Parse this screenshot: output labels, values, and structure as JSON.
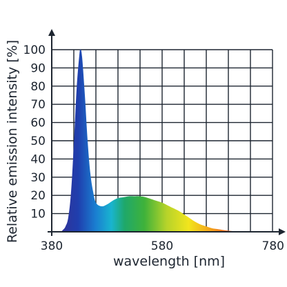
{
  "chart_data": {
    "type": "area",
    "title": "",
    "xlabel": "wavelength [nm]",
    "ylabel": "Relative emission intensity [%]",
    "xlim": [
      380,
      780
    ],
    "ylim": [
      0,
      100
    ],
    "x_ticks": [
      "380",
      "580",
      "780"
    ],
    "y_ticks": [
      "10",
      "20",
      "30",
      "40",
      "50",
      "60",
      "70",
      "80",
      "90",
      "100"
    ],
    "grid": true,
    "legend": "none",
    "fill": "visible spectrum color gradient (violet to red)",
    "colors": {
      "axis": "#1d2530",
      "grid": "#1d2530",
      "spectrum": [
        "#3a2a8c",
        "#1f3fae",
        "#1a7fd1",
        "#19b4cf",
        "#1fa86a",
        "#3fb23a",
        "#b6d32a",
        "#f2e51d",
        "#f3a21a",
        "#e8501f",
        "#d6221b"
      ]
    },
    "series": [
      {
        "x": [
          380,
          395,
          400,
          405,
          410,
          415,
          420,
          425,
          430,
          432,
          435,
          440,
          445,
          450,
          455,
          460,
          470,
          480,
          490,
          500,
          510,
          520,
          530,
          540,
          550,
          560,
          570,
          580,
          590,
          600,
          610,
          620,
          630,
          640,
          650,
          660,
          670,
          680,
          690,
          700,
          710,
          720,
          740,
          760,
          780
        ],
        "y": [
          0,
          0,
          1,
          3,
          8,
          22,
          48,
          78,
          97,
          100,
          96,
          75,
          50,
          32,
          22,
          16,
          14,
          15,
          17,
          18.5,
          19,
          19.5,
          19.5,
          19.5,
          19,
          18,
          17,
          16,
          14.5,
          13,
          11.5,
          9.5,
          7.5,
          5.5,
          4,
          3,
          2,
          1.5,
          1,
          0.6,
          0.3,
          0.1,
          0,
          0,
          0
        ]
      }
    ]
  }
}
